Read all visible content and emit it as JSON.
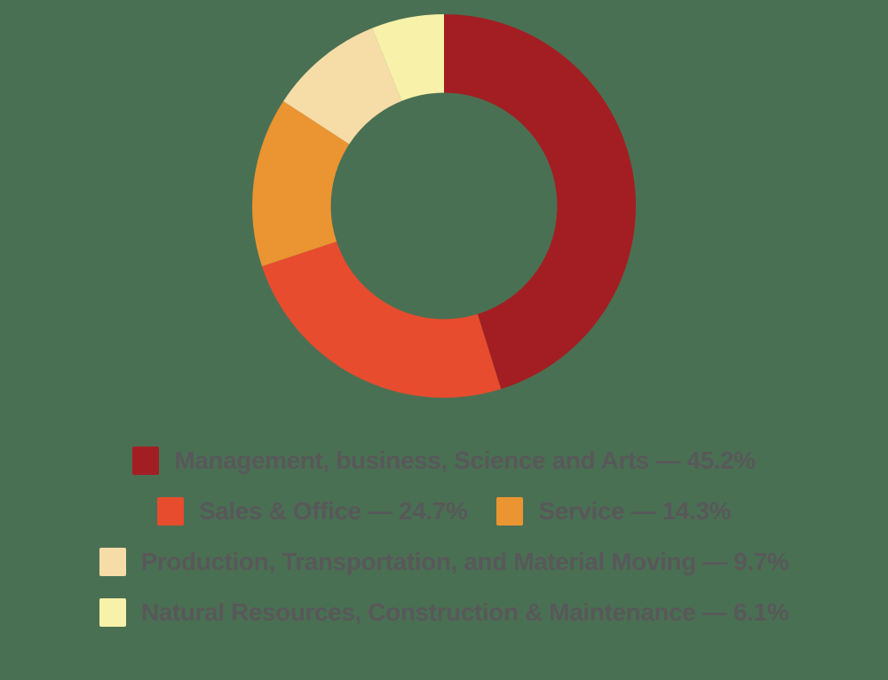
{
  "page": {
    "background_color": "#4A7053"
  },
  "chart_data": {
    "type": "pie",
    "subtype": "donut",
    "title": "",
    "start_angle_deg": 0,
    "direction": "clockwise",
    "inner_radius_ratio": 0.59,
    "hole_color": "#FFFFFF",
    "legend_position": "bottom",
    "segments": [
      {
        "label": "Management, business, Science and Arts",
        "value": 45.2,
        "color": "#A31E22"
      },
      {
        "label": "Sales & Office",
        "value": 24.7,
        "color": "#E74C2E"
      },
      {
        "label": "Service",
        "value": 14.3,
        "color": "#EA9432"
      },
      {
        "label": "Production, Transportation, and Material Moving",
        "value": 9.7,
        "color": "#F6DCA7"
      },
      {
        "label": "Natural Resources, Construction & Maintenance",
        "value": 6.1,
        "color": "#F7F1A9"
      }
    ]
  },
  "legend": {
    "text_color": "#58585A",
    "separator": " — ",
    "value_suffix": "%",
    "rows": [
      [
        0
      ],
      [
        1,
        2
      ],
      [
        3
      ],
      [
        4
      ]
    ]
  }
}
